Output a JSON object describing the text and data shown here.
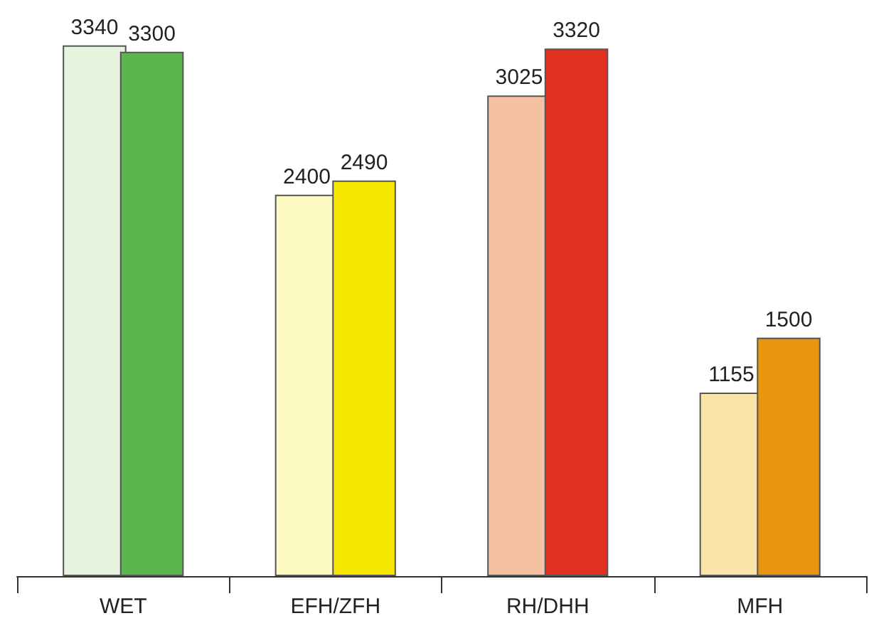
{
  "chart_data": {
    "type": "bar",
    "categories": [
      "WET",
      "EFH/ZFH",
      "RH/DHH",
      "MFH"
    ],
    "series": [
      {
        "colors": [
          "#e6f3df",
          "#fdfbc2",
          "#f4c2a2",
          "#fbe4aa"
        ],
        "values": [
          3340,
          2400,
          3025,
          1155
        ]
      },
      {
        "colors": [
          "#5cb64e",
          "#f7e600",
          "#e0301f",
          "#e8960f"
        ],
        "values": [
          3300,
          2490,
          3320,
          1500
        ]
      }
    ],
    "data_labels": true,
    "grid": false
  }
}
